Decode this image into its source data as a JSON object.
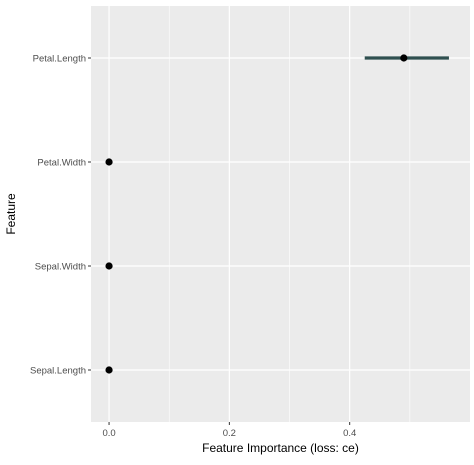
{
  "chart_data": {
    "type": "dot-interval",
    "title": "",
    "xlabel": "Feature Importance (loss: ce)",
    "ylabel": "Feature",
    "xlim": [
      -0.03,
      0.6
    ],
    "x_ticks": [
      0.0,
      0.2,
      0.4
    ],
    "x_tick_labels": [
      "0.0",
      "0.2",
      "0.4"
    ],
    "grid": true,
    "legend": "none",
    "colors": {
      "panel": "#ebebeb",
      "gridline": "#ffffff",
      "point": "#000000",
      "interval": "#2f4f4f",
      "text": "#4d4d4d",
      "title_text": "#000000"
    },
    "features": [
      {
        "name": "Petal.Length",
        "importance": 0.49,
        "lower": 0.425,
        "upper": 0.565
      },
      {
        "name": "Petal.Width",
        "importance": 0.0
      },
      {
        "name": "Sepal.Width",
        "importance": 0.0
      },
      {
        "name": "Sepal.Length",
        "importance": 0.0
      }
    ]
  }
}
